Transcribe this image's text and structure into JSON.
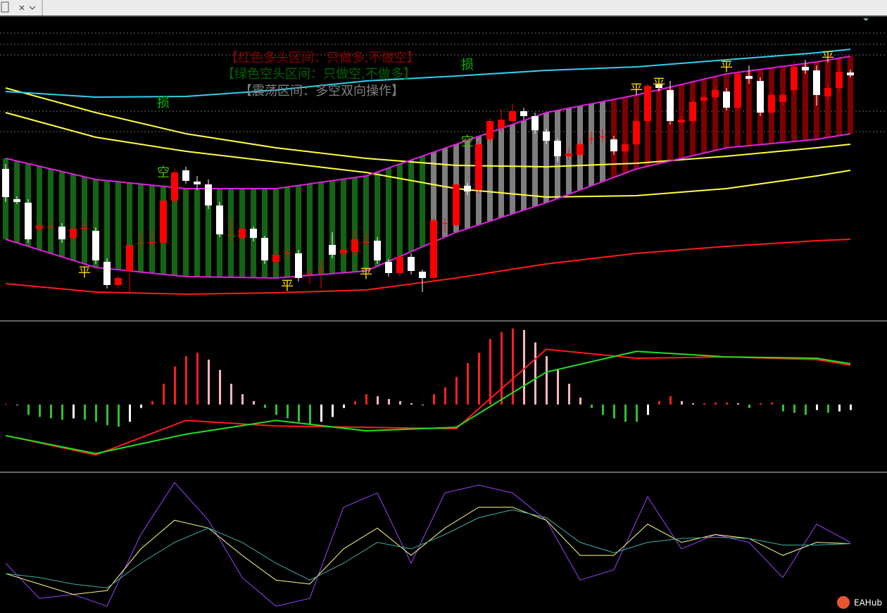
{
  "chart_data": [
    {
      "type": "candlestick",
      "notes": [
        "【红色多头区间：只做多,不做空】",
        "【绿色空头区间：只做空,不做多】",
        "【震荡区间：多空双向操作】"
      ],
      "note_colors": [
        "#8b0000",
        "#006400",
        "#808080"
      ],
      "ylim": [
        0,
        430
      ],
      "up_color": "#ff0000",
      "down_color": "#ffffff",
      "open": [
        215,
        172,
        167,
        130,
        133,
        133,
        117,
        130,
        127,
        83,
        50,
        70,
        109,
        110,
        110,
        170,
        213,
        197,
        193,
        163,
        120,
        117,
        130,
        117,
        83,
        95,
        95,
        65,
        70,
        107,
        95,
        97,
        110,
        113,
        83,
        67,
        90,
        69,
        60,
        137,
        135,
        191,
        185,
        257,
        273,
        283,
        297,
        290,
        268,
        255,
        233,
        235,
        257,
        260,
        257,
        240,
        250,
        283,
        335,
        327,
        281,
        283,
        312,
        317,
        325,
        302,
        347,
        340,
        295,
        310,
        327,
        360,
        355,
        318,
        330,
        352
      ],
      "high": [
        222,
        176,
        172,
        140,
        138,
        138,
        135,
        140,
        132,
        88,
        63,
        110,
        125,
        128,
        172,
        215,
        218,
        205,
        200,
        168,
        145,
        132,
        133,
        120,
        98,
        102,
        100,
        72,
        85,
        125,
        105,
        128,
        125,
        118,
        87,
        92,
        95,
        72,
        145,
        145,
        195,
        195,
        255,
        287,
        300,
        308,
        302,
        295,
        272,
        258,
        245,
        255,
        268,
        272,
        262,
        253,
        286,
        336,
        340,
        340,
        290,
        313,
        320,
        332,
        330,
        355,
        362,
        345,
        323,
        323,
        368,
        370,
        362,
        335,
        370,
        356
      ],
      "low": [
        168,
        165,
        110,
        126,
        128,
        110,
        112,
        124,
        80,
        45,
        46,
        38,
        100,
        104,
        108,
        165,
        194,
        185,
        158,
        118,
        112,
        115,
        112,
        80,
        80,
        88,
        55,
        52,
        45,
        88,
        90,
        92,
        103,
        80,
        62,
        62,
        65,
        40,
        57,
        125,
        132,
        178,
        180,
        252,
        268,
        280,
        285,
        265,
        250,
        225,
        228,
        230,
        250,
        252,
        235,
        236,
        247,
        280,
        325,
        278,
        278,
        280,
        308,
        313,
        298,
        298,
        336,
        290,
        292,
        305,
        322,
        350,
        305,
        312,
        325,
        345
      ],
      "close": [
        175,
        168,
        115,
        135,
        133,
        115,
        130,
        131,
        85,
        50,
        60,
        107,
        110,
        111,
        170,
        210,
        198,
        193,
        163,
        122,
        121,
        130,
        117,
        85,
        93,
        96,
        60,
        66,
        71,
        93,
        100,
        115,
        111,
        85,
        67,
        90,
        70,
        60,
        142,
        138,
        193,
        183,
        250,
        283,
        285,
        297,
        290,
        270,
        255,
        233,
        237,
        250,
        258,
        261,
        240,
        250,
        283,
        333,
        330,
        283,
        285,
        310,
        317,
        327,
        302,
        350,
        343,
        295,
        320,
        320,
        360,
        355,
        320,
        330,
        353,
        348
      ],
      "zones": [
        {
          "from": 0,
          "to": 37,
          "color": "#157015"
        },
        {
          "from": 38,
          "to": 53,
          "color": "#8c8c8c"
        },
        {
          "from": 54,
          "to": 75,
          "color": "#8b0000"
        }
      ],
      "series": [
        {
          "name": "ma-long",
          "color": "#ff1a1a",
          "x": [
            0,
            8,
            16,
            24,
            32,
            40,
            48,
            56,
            64,
            72,
            75
          ],
          "values": [
            52,
            40,
            37,
            39,
            43,
            60,
            80,
            95,
            105,
            113,
            115
          ]
        },
        {
          "name": "yellow-upper",
          "color": "#ffff40",
          "x": [
            0,
            8,
            16,
            24,
            32,
            40,
            48,
            56,
            64,
            72,
            75
          ],
          "values": [
            330,
            295,
            265,
            245,
            230,
            220,
            218,
            223,
            233,
            245,
            250
          ]
        },
        {
          "name": "yellow-lower",
          "color": "#ffff40",
          "x": [
            0,
            8,
            16,
            24,
            32,
            40,
            48,
            56,
            64,
            72,
            75
          ],
          "values": [
            295,
            260,
            240,
            225,
            210,
            187,
            175,
            177,
            187,
            205,
            213
          ]
        },
        {
          "name": "band-upper",
          "color": "#e020e0",
          "x": [
            0,
            8,
            16,
            24,
            32,
            40,
            48,
            56,
            64,
            72,
            75
          ],
          "values": [
            230,
            200,
            187,
            187,
            205,
            250,
            295,
            320,
            350,
            367,
            375
          ]
        },
        {
          "name": "band-lower",
          "color": "#e020e0",
          "x": [
            0,
            8,
            16,
            24,
            32,
            40,
            48,
            56,
            64,
            72,
            75
          ],
          "values": [
            115,
            75,
            62,
            60,
            70,
            125,
            167,
            215,
            245,
            257,
            265
          ]
        },
        {
          "name": "cyan-top",
          "color": "#30d0f0",
          "x": [
            0,
            8,
            16,
            24,
            32,
            40,
            48,
            56,
            64,
            72,
            75
          ],
          "values": [
            325,
            317,
            318,
            327,
            340,
            347,
            355,
            360,
            370,
            380,
            385
          ]
        }
      ],
      "annotations": [
        {
          "text": "平",
          "x": 7,
          "value": 67,
          "color": "#ffd700"
        },
        {
          "text": "平",
          "x": 25,
          "value": 48,
          "color": "#ffd700"
        },
        {
          "text": "平",
          "x": 32,
          "value": 65,
          "color": "#ffd700"
        },
        {
          "text": "平",
          "x": 56,
          "value": 327,
          "color": "#ffd700"
        },
        {
          "text": "平",
          "x": 58,
          "value": 335,
          "color": "#ffd700"
        },
        {
          "text": "平",
          "x": 64,
          "value": 359,
          "color": "#ffd700"
        },
        {
          "text": "平",
          "x": 73,
          "value": 373,
          "color": "#ffd700"
        },
        {
          "text": "空",
          "x": 14,
          "value": 209,
          "color": "#40c000"
        },
        {
          "text": "空",
          "x": 41,
          "value": 253,
          "color": "#40c000"
        },
        {
          "text": "损",
          "x": 14,
          "value": 308,
          "color": "#00c000"
        },
        {
          "text": "损",
          "x": 41,
          "value": 362,
          "color": "#00c000"
        }
      ]
    },
    {
      "type": "macd",
      "ylim": [
        -95,
        117
      ],
      "values": [
        1,
        0,
        -15,
        -18,
        -20,
        -22,
        -20,
        -22,
        -25,
        -30,
        -32,
        -25,
        -5,
        5,
        30,
        55,
        70,
        75,
        65,
        50,
        30,
        15,
        5,
        -5,
        -15,
        -20,
        -25,
        -28,
        -25,
        -18,
        -5,
        5,
        15,
        12,
        8,
        5,
        2,
        0,
        15,
        25,
        40,
        60,
        75,
        95,
        105,
        110,
        108,
        90,
        70,
        50,
        30,
        10,
        -5,
        -15,
        -20,
        -25,
        -25,
        -15,
        5,
        12,
        5,
        2,
        2,
        3,
        3,
        2,
        -5,
        2,
        3,
        -10,
        -12,
        -15,
        -8,
        -12,
        -10,
        -8
      ],
      "series": [
        {
          "name": "macd-red",
          "color": "#ff1a1a",
          "x": [
            0,
            8,
            16,
            24,
            32,
            40,
            48,
            56,
            64,
            72,
            75
          ],
          "values": [
            -45,
            -73,
            -23,
            -31,
            -33,
            -35,
            80,
            67,
            69,
            65,
            57
          ]
        },
        {
          "name": "macd-green",
          "color": "#20e020",
          "x": [
            0,
            8,
            16,
            24,
            32,
            40,
            48,
            56,
            64,
            72,
            75
          ],
          "values": [
            -45,
            -71,
            -43,
            -23,
            -38,
            -33,
            47,
            77,
            69,
            67,
            59
          ]
        }
      ]
    },
    {
      "type": "line",
      "ylim": [
        0,
        100
      ],
      "series": [
        {
          "name": "k-purple",
          "color": "#9a40ff",
          "x": [
            0,
            3,
            6,
            9,
            12,
            15,
            18,
            21,
            24,
            27,
            30,
            33,
            36,
            39,
            42,
            45,
            48,
            51,
            54,
            57,
            60,
            63,
            66,
            69,
            72,
            75
          ],
          "values": [
            35,
            8,
            11,
            2,
            57,
            97,
            68,
            24,
            2,
            8,
            78,
            89,
            35,
            89,
            95,
            89,
            68,
            22,
            30,
            86,
            46,
            57,
            51,
            24,
            65,
            51
          ]
        },
        {
          "name": "d-yellow",
          "color": "#ffff80",
          "x": [
            0,
            3,
            6,
            9,
            12,
            15,
            18,
            21,
            24,
            27,
            30,
            33,
            36,
            39,
            42,
            45,
            48,
            51,
            54,
            57,
            60,
            63,
            66,
            69,
            72,
            75
          ],
          "values": [
            27,
            19,
            11,
            14,
            46,
            68,
            62,
            41,
            22,
            19,
            46,
            62,
            41,
            62,
            78,
            78,
            68,
            41,
            41,
            65,
            51,
            57,
            54,
            41,
            51,
            50
          ]
        },
        {
          "name": "s-teal",
          "color": "#40b0a0",
          "x": [
            0,
            3,
            6,
            9,
            12,
            15,
            18,
            21,
            24,
            27,
            30,
            33,
            36,
            39,
            42,
            45,
            48,
            51,
            54,
            57,
            60,
            63,
            66,
            69,
            72,
            75
          ],
          "values": [
            27,
            24,
            19,
            16,
            35,
            51,
            62,
            51,
            35,
            22,
            35,
            51,
            46,
            57,
            70,
            76,
            70,
            51,
            43,
            51,
            54,
            55,
            54,
            49,
            49,
            50
          ]
        }
      ]
    }
  ],
  "watermark": "EAHub"
}
